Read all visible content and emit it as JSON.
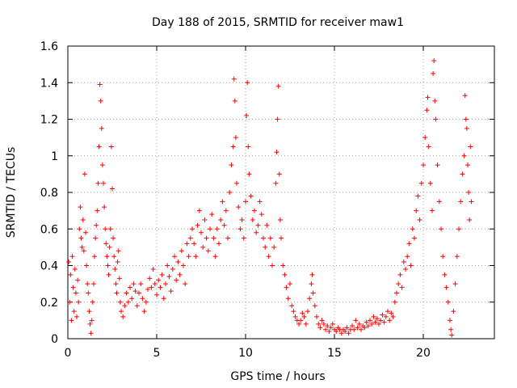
{
  "chart_data": {
    "type": "scatter",
    "title": "Day 188 of 2015, SRMTID for receiver maw1",
    "xlabel": "GPS time / hours",
    "ylabel": "SRMTID / TECUs",
    "xlim": [
      0,
      24
    ],
    "ylim": [
      0,
      1.6
    ],
    "xticks": [
      0,
      5,
      10,
      15,
      20
    ],
    "xtick_labels": [
      "0",
      "5",
      "10",
      "15",
      "20"
    ],
    "yticks": [
      0,
      0.2,
      0.4,
      0.6,
      0.8,
      1,
      1.2,
      1.4,
      1.6
    ],
    "ytick_labels": [
      "0",
      "0.2",
      "0.4",
      "0.6",
      "0.8",
      "1",
      "1.2",
      "1.4",
      "1.6"
    ],
    "grid": true,
    "marker": "+",
    "marker_color": "#ff0000",
    "series": [
      {
        "name": "SRMTID",
        "points": [
          [
            0.05,
            0.42
          ],
          [
            0.1,
            0.2
          ],
          [
            0.15,
            0.35
          ],
          [
            0.2,
            0.1
          ],
          [
            0.25,
            0.45
          ],
          [
            0.3,
            0.28
          ],
          [
            0.35,
            0.15
          ],
          [
            0.4,
            0.38
          ],
          [
            0.45,
            0.25
          ],
          [
            0.5,
            0.12
          ],
          [
            0.55,
            0.32
          ],
          [
            0.6,
            0.2
          ],
          [
            0.65,
            0.6
          ],
          [
            0.7,
            0.72
          ],
          [
            0.75,
            0.55
          ],
          [
            0.8,
            0.5
          ],
          [
            0.85,
            0.65
          ],
          [
            0.9,
            0.48
          ],
          [
            0.95,
            0.9
          ],
          [
            1.0,
            0.58
          ],
          [
            1.05,
            0.4
          ],
          [
            1.1,
            0.3
          ],
          [
            1.15,
            0.25
          ],
          [
            1.2,
            0.15
          ],
          [
            1.25,
            0.08
          ],
          [
            1.3,
            0.03
          ],
          [
            1.35,
            0.1
          ],
          [
            1.4,
            0.2
          ],
          [
            1.45,
            0.3
          ],
          [
            1.5,
            0.45
          ],
          [
            1.55,
            0.55
          ],
          [
            1.6,
            0.62
          ],
          [
            1.65,
            0.7
          ],
          [
            1.7,
            0.85
          ],
          [
            1.75,
            1.05
          ],
          [
            1.8,
            1.39
          ],
          [
            1.85,
            1.3
          ],
          [
            1.9,
            1.15
          ],
          [
            1.95,
            0.95
          ],
          [
            2.0,
            0.85
          ],
          [
            2.05,
            0.72
          ],
          [
            2.1,
            0.6
          ],
          [
            2.15,
            0.52
          ],
          [
            2.2,
            0.45
          ],
          [
            2.25,
            0.4
          ],
          [
            2.3,
            0.35
          ],
          [
            2.35,
            0.5
          ],
          [
            2.4,
            0.6
          ],
          [
            2.45,
            1.05
          ],
          [
            2.5,
            0.82
          ],
          [
            2.55,
            0.55
          ],
          [
            2.6,
            0.45
          ],
          [
            2.65,
            0.38
          ],
          [
            2.7,
            0.3
          ],
          [
            2.75,
            0.25
          ],
          [
            2.8,
            0.42
          ],
          [
            2.85,
            0.48
          ],
          [
            2.9,
            0.33
          ],
          [
            2.95,
            0.2
          ],
          [
            3.0,
            0.15
          ],
          [
            3.1,
            0.12
          ],
          [
            3.2,
            0.18
          ],
          [
            3.3,
            0.25
          ],
          [
            3.4,
            0.2
          ],
          [
            3.5,
            0.28
          ],
          [
            3.6,
            0.22
          ],
          [
            3.7,
            0.3
          ],
          [
            3.8,
            0.26
          ],
          [
            3.9,
            0.18
          ],
          [
            4.0,
            0.25
          ],
          [
            4.1,
            0.3
          ],
          [
            4.2,
            0.22
          ],
          [
            4.3,
            0.15
          ],
          [
            4.4,
            0.2
          ],
          [
            4.5,
            0.27
          ],
          [
            4.6,
            0.33
          ],
          [
            4.7,
            0.28
          ],
          [
            4.8,
            0.38
          ],
          [
            4.9,
            0.3
          ],
          [
            5.0,
            0.24
          ],
          [
            5.1,
            0.32
          ],
          [
            5.2,
            0.28
          ],
          [
            5.3,
            0.35
          ],
          [
            5.4,
            0.22
          ],
          [
            5.5,
            0.3
          ],
          [
            5.6,
            0.4
          ],
          [
            5.7,
            0.34
          ],
          [
            5.8,
            0.26
          ],
          [
            5.9,
            0.38
          ],
          [
            6.0,
            0.45
          ],
          [
            6.1,
            0.32
          ],
          [
            6.2,
            0.42
          ],
          [
            6.3,
            0.35
          ],
          [
            6.4,
            0.48
          ],
          [
            6.5,
            0.4
          ],
          [
            6.6,
            0.3
          ],
          [
            6.7,
            0.52
          ],
          [
            6.8,
            0.45
          ],
          [
            6.9,
            0.55
          ],
          [
            7.0,
            0.6
          ],
          [
            7.1,
            0.52
          ],
          [
            7.2,
            0.45
          ],
          [
            7.3,
            0.62
          ],
          [
            7.4,
            0.7
          ],
          [
            7.5,
            0.58
          ],
          [
            7.6,
            0.5
          ],
          [
            7.7,
            0.65
          ],
          [
            7.8,
            0.55
          ],
          [
            7.9,
            0.48
          ],
          [
            8.0,
            0.6
          ],
          [
            8.1,
            0.68
          ],
          [
            8.2,
            0.55
          ],
          [
            8.3,
            0.45
          ],
          [
            8.4,
            0.6
          ],
          [
            8.5,
            0.52
          ],
          [
            8.6,
            0.65
          ],
          [
            8.7,
            0.75
          ],
          [
            8.8,
            0.62
          ],
          [
            8.9,
            0.7
          ],
          [
            9.0,
            0.55
          ],
          [
            9.1,
            0.8
          ],
          [
            9.2,
            0.95
          ],
          [
            9.3,
            1.05
          ],
          [
            9.35,
            1.42
          ],
          [
            9.4,
            1.3
          ],
          [
            9.45,
            1.1
          ],
          [
            9.5,
            0.85
          ],
          [
            9.6,
            0.72
          ],
          [
            9.7,
            0.6
          ],
          [
            9.8,
            0.65
          ],
          [
            9.9,
            0.55
          ],
          [
            10.0,
            0.75
          ],
          [
            10.05,
            1.22
          ],
          [
            10.1,
            1.4
          ],
          [
            10.15,
            1.05
          ],
          [
            10.2,
            0.9
          ],
          [
            10.3,
            0.78
          ],
          [
            10.4,
            0.65
          ],
          [
            10.5,
            0.7
          ],
          [
            10.6,
            0.58
          ],
          [
            10.7,
            0.62
          ],
          [
            10.8,
            0.75
          ],
          [
            10.9,
            0.68
          ],
          [
            11.0,
            0.55
          ],
          [
            11.1,
            0.5
          ],
          [
            11.2,
            0.62
          ],
          [
            11.3,
            0.45
          ],
          [
            11.4,
            0.55
          ],
          [
            11.5,
            0.4
          ],
          [
            11.6,
            0.5
          ],
          [
            11.7,
            0.85
          ],
          [
            11.75,
            1.02
          ],
          [
            11.8,
            1.2
          ],
          [
            11.85,
            1.38
          ],
          [
            11.9,
            0.9
          ],
          [
            11.95,
            0.65
          ],
          [
            12.0,
            0.55
          ],
          [
            12.1,
            0.4
          ],
          [
            12.2,
            0.35
          ],
          [
            12.3,
            0.28
          ],
          [
            12.4,
            0.22
          ],
          [
            12.5,
            0.3
          ],
          [
            12.6,
            0.18
          ],
          [
            12.7,
            0.15
          ],
          [
            12.8,
            0.12
          ],
          [
            12.9,
            0.1
          ],
          [
            13.0,
            0.08
          ],
          [
            13.1,
            0.1
          ],
          [
            13.2,
            0.14
          ],
          [
            13.3,
            0.12
          ],
          [
            13.4,
            0.08
          ],
          [
            13.5,
            0.15
          ],
          [
            13.6,
            0.22
          ],
          [
            13.7,
            0.3
          ],
          [
            13.75,
            0.35
          ],
          [
            13.8,
            0.25
          ],
          [
            13.9,
            0.18
          ],
          [
            14.0,
            0.12
          ],
          [
            14.1,
            0.08
          ],
          [
            14.2,
            0.06
          ],
          [
            14.3,
            0.1
          ],
          [
            14.4,
            0.08
          ],
          [
            14.5,
            0.05
          ],
          [
            14.6,
            0.07
          ],
          [
            14.7,
            0.04
          ],
          [
            14.8,
            0.06
          ],
          [
            14.9,
            0.08
          ],
          [
            15.0,
            0.05
          ],
          [
            15.1,
            0.04
          ],
          [
            15.2,
            0.06
          ],
          [
            15.3,
            0.05
          ],
          [
            15.4,
            0.03
          ],
          [
            15.5,
            0.05
          ],
          [
            15.6,
            0.04
          ],
          [
            15.7,
            0.06
          ],
          [
            15.8,
            0.03
          ],
          [
            15.9,
            0.05
          ],
          [
            16.0,
            0.07
          ],
          [
            16.1,
            0.05
          ],
          [
            16.2,
            0.1
          ],
          [
            16.3,
            0.06
          ],
          [
            16.4,
            0.08
          ],
          [
            16.5,
            0.05
          ],
          [
            16.6,
            0.07
          ],
          [
            16.7,
            0.06
          ],
          [
            16.8,
            0.09
          ],
          [
            16.9,
            0.07
          ],
          [
            17.0,
            0.1
          ],
          [
            17.1,
            0.08
          ],
          [
            17.2,
            0.12
          ],
          [
            17.3,
            0.09
          ],
          [
            17.4,
            0.11
          ],
          [
            17.5,
            0.08
          ],
          [
            17.6,
            0.1
          ],
          [
            17.7,
            0.13
          ],
          [
            17.8,
            0.09
          ],
          [
            17.9,
            0.12
          ],
          [
            18.0,
            0.15
          ],
          [
            18.1,
            0.1
          ],
          [
            18.2,
            0.14
          ],
          [
            18.3,
            0.12
          ],
          [
            18.4,
            0.2
          ],
          [
            18.5,
            0.25
          ],
          [
            18.6,
            0.3
          ],
          [
            18.7,
            0.35
          ],
          [
            18.8,
            0.28
          ],
          [
            18.9,
            0.42
          ],
          [
            19.0,
            0.38
          ],
          [
            19.1,
            0.45
          ],
          [
            19.2,
            0.52
          ],
          [
            19.3,
            0.4
          ],
          [
            19.4,
            0.6
          ],
          [
            19.5,
            0.55
          ],
          [
            19.6,
            0.7
          ],
          [
            19.7,
            0.78
          ],
          [
            19.8,
            0.65
          ],
          [
            19.9,
            0.85
          ],
          [
            20.0,
            0.95
          ],
          [
            20.1,
            1.1
          ],
          [
            20.2,
            1.25
          ],
          [
            20.25,
            1.32
          ],
          [
            20.3,
            1.05
          ],
          [
            20.4,
            0.85
          ],
          [
            20.5,
            0.7
          ],
          [
            20.55,
            1.45
          ],
          [
            20.6,
            1.52
          ],
          [
            20.65,
            1.3
          ],
          [
            20.7,
            1.2
          ],
          [
            20.8,
            0.95
          ],
          [
            20.9,
            0.75
          ],
          [
            21.0,
            0.6
          ],
          [
            21.1,
            0.45
          ],
          [
            21.2,
            0.35
          ],
          [
            21.3,
            0.28
          ],
          [
            21.4,
            0.2
          ],
          [
            21.5,
            0.1
          ],
          [
            21.55,
            0.05
          ],
          [
            21.6,
            0.02
          ],
          [
            21.7,
            0.15
          ],
          [
            21.8,
            0.3
          ],
          [
            21.9,
            0.45
          ],
          [
            22.0,
            0.6
          ],
          [
            22.1,
            0.75
          ],
          [
            22.2,
            0.9
          ],
          [
            22.3,
            1.0
          ],
          [
            22.35,
            1.33
          ],
          [
            22.4,
            1.2
          ],
          [
            22.45,
            1.15
          ],
          [
            22.5,
            0.95
          ],
          [
            22.55,
            0.8
          ],
          [
            22.6,
            0.65
          ],
          [
            22.65,
            1.05
          ],
          [
            22.7,
            0.75
          ]
        ]
      }
    ]
  }
}
